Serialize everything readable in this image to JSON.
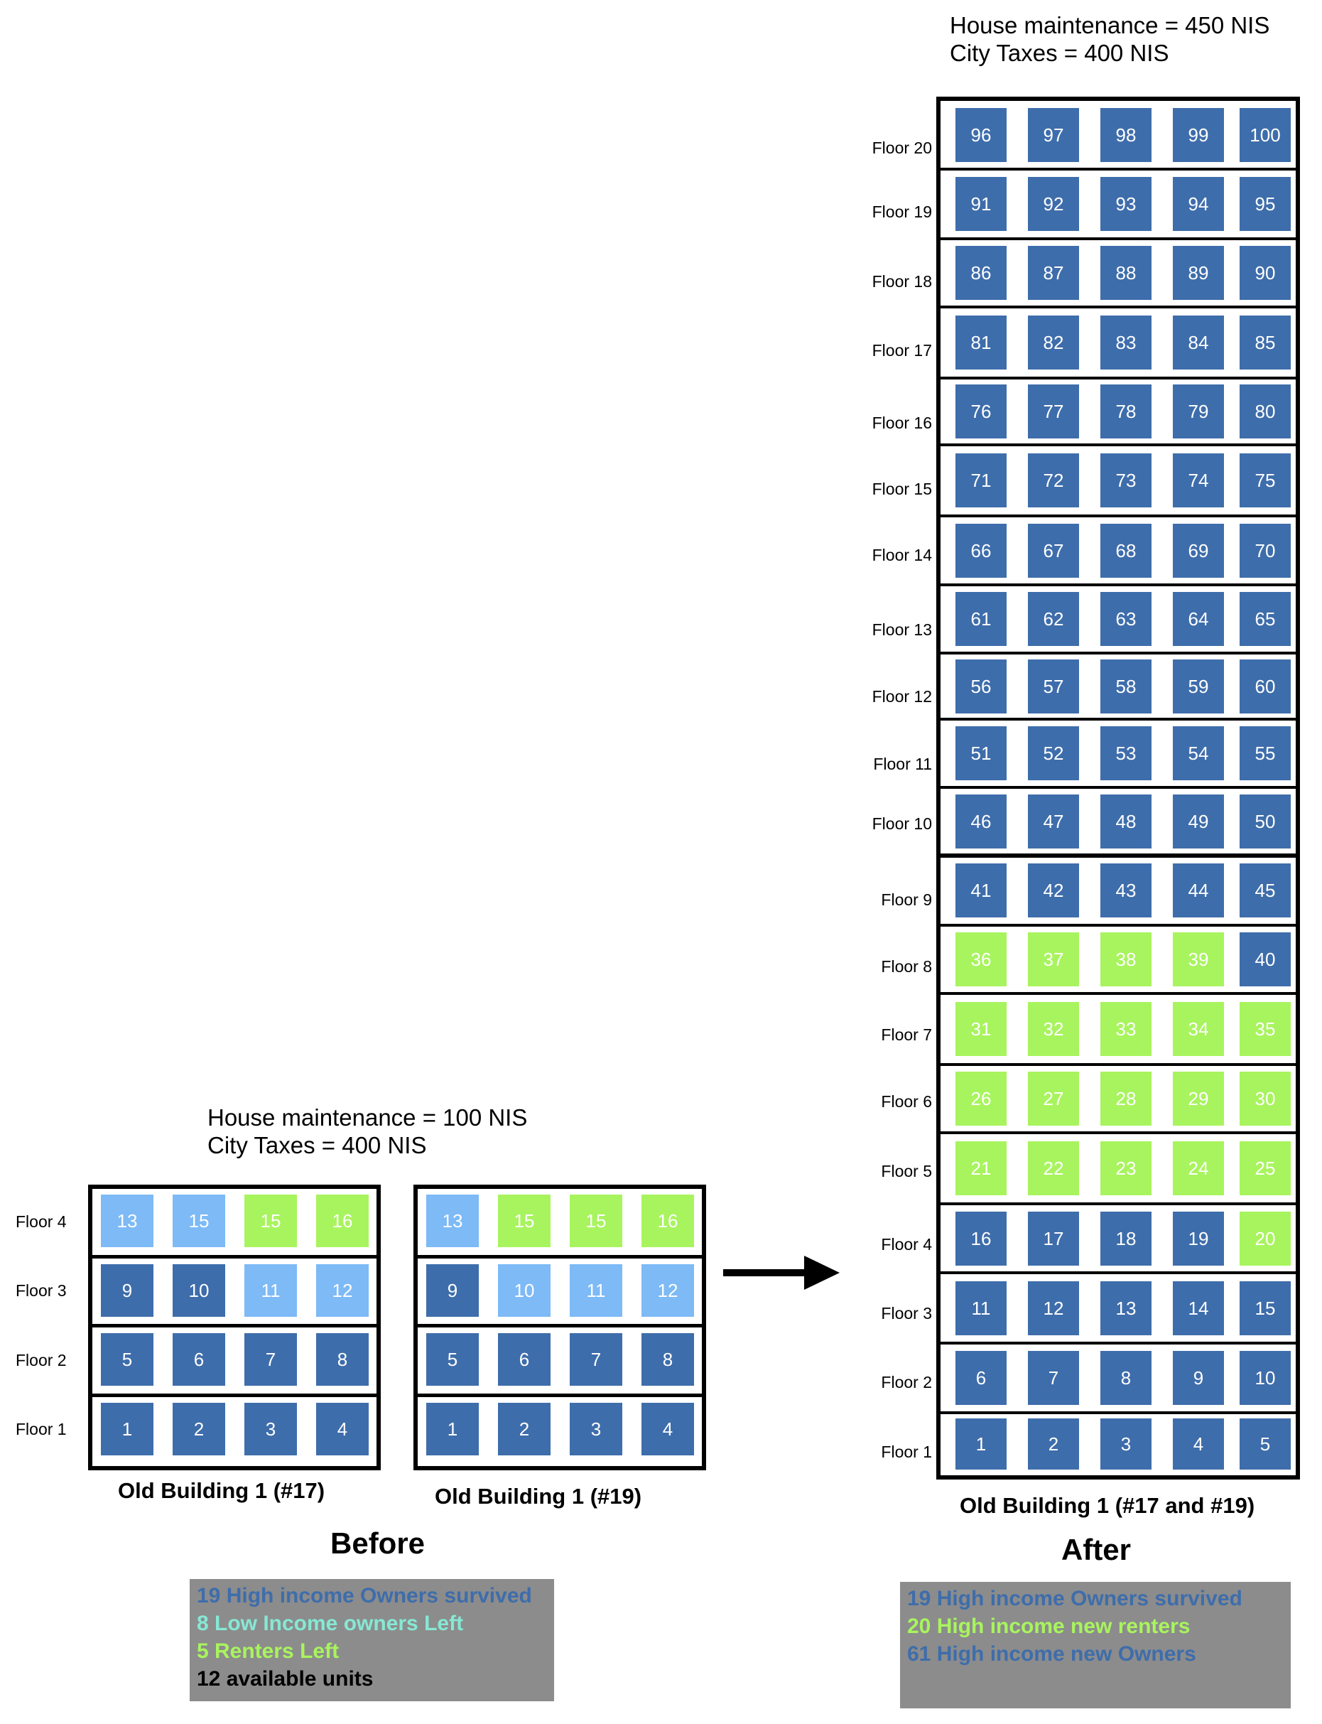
{
  "colors": {
    "high_income_owner": "#3e6dab",
    "low_income_owner": "#7dbaf6",
    "renter": "#a8f45e",
    "legend_bg": "#8c8c8c",
    "legend_low_income_text": "#86e8d4"
  },
  "before": {
    "costs": {
      "maintenance": "House maintenance = 100 NIS",
      "taxes": "City Taxes = 400 NIS"
    },
    "floor_labels": [
      "Floor 4",
      "Floor 3",
      "Floor 2",
      "Floor 1"
    ],
    "buildings": [
      {
        "caption": "Old Building 1 (#17)",
        "floors": [
          [
            {
              "n": "13",
              "c": "light"
            },
            {
              "n": "15",
              "c": "light"
            },
            {
              "n": "15",
              "c": "green"
            },
            {
              "n": "16",
              "c": "green"
            }
          ],
          [
            {
              "n": "9",
              "c": "dark"
            },
            {
              "n": "10",
              "c": "dark"
            },
            {
              "n": "11",
              "c": "light"
            },
            {
              "n": "12",
              "c": "light"
            }
          ],
          [
            {
              "n": "5",
              "c": "dark"
            },
            {
              "n": "6",
              "c": "dark"
            },
            {
              "n": "7",
              "c": "dark"
            },
            {
              "n": "8",
              "c": "dark"
            }
          ],
          [
            {
              "n": "1",
              "c": "dark"
            },
            {
              "n": "2",
              "c": "dark"
            },
            {
              "n": "3",
              "c": "dark"
            },
            {
              "n": "4",
              "c": "dark"
            }
          ]
        ]
      },
      {
        "caption": "Old Building 1 (#19)",
        "floors": [
          [
            {
              "n": "13",
              "c": "light"
            },
            {
              "n": "15",
              "c": "green"
            },
            {
              "n": "15",
              "c": "green"
            },
            {
              "n": "16",
              "c": "green"
            }
          ],
          [
            {
              "n": "9",
              "c": "dark"
            },
            {
              "n": "10",
              "c": "light"
            },
            {
              "n": "11",
              "c": "light"
            },
            {
              "n": "12",
              "c": "light"
            }
          ],
          [
            {
              "n": "5",
              "c": "dark"
            },
            {
              "n": "6",
              "c": "dark"
            },
            {
              "n": "7",
              "c": "dark"
            },
            {
              "n": "8",
              "c": "dark"
            }
          ],
          [
            {
              "n": "1",
              "c": "dark"
            },
            {
              "n": "2",
              "c": "dark"
            },
            {
              "n": "3",
              "c": "dark"
            },
            {
              "n": "4",
              "c": "dark"
            }
          ]
        ]
      }
    ],
    "title": "Before",
    "legend": [
      {
        "text": "19 High income Owners survived",
        "color": "#3e6dab"
      },
      {
        "text": "8 Low Income owners Left",
        "color": "#86e8d4"
      },
      {
        "text": "5 Renters Left",
        "color": "#a8f45e"
      },
      {
        "text": "12 available units",
        "color": "#000000"
      }
    ]
  },
  "after": {
    "costs": {
      "maintenance": "House maintenance = 450 NIS",
      "taxes": "City Taxes = 400 NIS"
    },
    "caption": "Old Building 1 (#17 and #19)",
    "title": "After",
    "floors": [
      {
        "label": "Floor 20",
        "units": [
          {
            "n": "96",
            "c": "dark"
          },
          {
            "n": "97",
            "c": "dark"
          },
          {
            "n": "98",
            "c": "dark"
          },
          {
            "n": "99",
            "c": "dark"
          },
          {
            "n": "100",
            "c": "dark"
          }
        ]
      },
      {
        "label": "Floor 19",
        "units": [
          {
            "n": "91",
            "c": "dark"
          },
          {
            "n": "92",
            "c": "dark"
          },
          {
            "n": "93",
            "c": "dark"
          },
          {
            "n": "94",
            "c": "dark"
          },
          {
            "n": "95",
            "c": "dark"
          }
        ]
      },
      {
        "label": "Floor 18",
        "units": [
          {
            "n": "86",
            "c": "dark"
          },
          {
            "n": "87",
            "c": "dark"
          },
          {
            "n": "88",
            "c": "dark"
          },
          {
            "n": "89",
            "c": "dark"
          },
          {
            "n": "90",
            "c": "dark"
          }
        ]
      },
      {
        "label": "Floor 17",
        "units": [
          {
            "n": "81",
            "c": "dark"
          },
          {
            "n": "82",
            "c": "dark"
          },
          {
            "n": "83",
            "c": "dark"
          },
          {
            "n": "84",
            "c": "dark"
          },
          {
            "n": "85",
            "c": "dark"
          }
        ]
      },
      {
        "label": "Floor 16",
        "units": [
          {
            "n": "76",
            "c": "dark"
          },
          {
            "n": "77",
            "c": "dark"
          },
          {
            "n": "78",
            "c": "dark"
          },
          {
            "n": "79",
            "c": "dark"
          },
          {
            "n": "80",
            "c": "dark"
          }
        ]
      },
      {
        "label": "Floor 15",
        "units": [
          {
            "n": "71",
            "c": "dark"
          },
          {
            "n": "72",
            "c": "dark"
          },
          {
            "n": "73",
            "c": "dark"
          },
          {
            "n": "74",
            "c": "dark"
          },
          {
            "n": "75",
            "c": "dark"
          }
        ]
      },
      {
        "label": "Floor 14",
        "units": [
          {
            "n": "66",
            "c": "dark"
          },
          {
            "n": "67",
            "c": "dark"
          },
          {
            "n": "68",
            "c": "dark"
          },
          {
            "n": "69",
            "c": "dark"
          },
          {
            "n": "70",
            "c": "dark"
          }
        ]
      },
      {
        "label": "Floor 13",
        "units": [
          {
            "n": "61",
            "c": "dark"
          },
          {
            "n": "62",
            "c": "dark"
          },
          {
            "n": "63",
            "c": "dark"
          },
          {
            "n": "64",
            "c": "dark"
          },
          {
            "n": "65",
            "c": "dark"
          }
        ]
      },
      {
        "label": "Floor 12",
        "units": [
          {
            "n": "56",
            "c": "dark"
          },
          {
            "n": "57",
            "c": "dark"
          },
          {
            "n": "58",
            "c": "dark"
          },
          {
            "n": "59",
            "c": "dark"
          },
          {
            "n": "60",
            "c": "dark"
          }
        ]
      },
      {
        "label": "Floor 11",
        "units": [
          {
            "n": "51",
            "c": "dark"
          },
          {
            "n": "52",
            "c": "dark"
          },
          {
            "n": "53",
            "c": "dark"
          },
          {
            "n": "54",
            "c": "dark"
          },
          {
            "n": "55",
            "c": "dark"
          }
        ]
      },
      {
        "label": "Floor 10",
        "units": [
          {
            "n": "46",
            "c": "dark"
          },
          {
            "n": "47",
            "c": "dark"
          },
          {
            "n": "48",
            "c": "dark"
          },
          {
            "n": "49",
            "c": "dark"
          },
          {
            "n": "50",
            "c": "dark"
          }
        ]
      },
      {
        "label": "Floor 9",
        "units": [
          {
            "n": "41",
            "c": "dark"
          },
          {
            "n": "42",
            "c": "dark"
          },
          {
            "n": "43",
            "c": "dark"
          },
          {
            "n": "44",
            "c": "dark"
          },
          {
            "n": "45",
            "c": "dark"
          }
        ]
      },
      {
        "label": "Floor 8",
        "units": [
          {
            "n": "36",
            "c": "green"
          },
          {
            "n": "37",
            "c": "green"
          },
          {
            "n": "38",
            "c": "green"
          },
          {
            "n": "39",
            "c": "green"
          },
          {
            "n": "40",
            "c": "dark"
          }
        ]
      },
      {
        "label": "Floor 7",
        "units": [
          {
            "n": "31",
            "c": "green"
          },
          {
            "n": "32",
            "c": "green"
          },
          {
            "n": "33",
            "c": "green"
          },
          {
            "n": "34",
            "c": "green"
          },
          {
            "n": "35",
            "c": "green"
          }
        ]
      },
      {
        "label": "Floor 6",
        "units": [
          {
            "n": "26",
            "c": "green"
          },
          {
            "n": "27",
            "c": "green"
          },
          {
            "n": "28",
            "c": "green"
          },
          {
            "n": "29",
            "c": "green"
          },
          {
            "n": "30",
            "c": "green"
          }
        ]
      },
      {
        "label": "Floor 5",
        "units": [
          {
            "n": "21",
            "c": "green"
          },
          {
            "n": "22",
            "c": "green"
          },
          {
            "n": "23",
            "c": "green"
          },
          {
            "n": "24",
            "c": "green"
          },
          {
            "n": "25",
            "c": "green"
          }
        ]
      },
      {
        "label": "Floor 4",
        "units": [
          {
            "n": "16",
            "c": "dark"
          },
          {
            "n": "17",
            "c": "dark"
          },
          {
            "n": "18",
            "c": "dark"
          },
          {
            "n": "19",
            "c": "dark"
          },
          {
            "n": "20",
            "c": "green"
          }
        ]
      },
      {
        "label": "Floor 3",
        "units": [
          {
            "n": "11",
            "c": "dark"
          },
          {
            "n": "12",
            "c": "dark"
          },
          {
            "n": "13",
            "c": "dark"
          },
          {
            "n": "14",
            "c": "dark"
          },
          {
            "n": "15",
            "c": "dark"
          }
        ]
      },
      {
        "label": "Floor 2",
        "units": [
          {
            "n": "6",
            "c": "dark"
          },
          {
            "n": "7",
            "c": "dark"
          },
          {
            "n": "8",
            "c": "dark"
          },
          {
            "n": "9",
            "c": "dark"
          },
          {
            "n": "10",
            "c": "dark"
          }
        ]
      },
      {
        "label": "Floor 1",
        "units": [
          {
            "n": "1",
            "c": "dark"
          },
          {
            "n": "2",
            "c": "dark"
          },
          {
            "n": "3",
            "c": "dark"
          },
          {
            "n": "4",
            "c": "dark"
          },
          {
            "n": "5",
            "c": "dark"
          }
        ]
      }
    ],
    "legend": [
      {
        "text": "19 High income Owners survived",
        "color": "#3e6dab"
      },
      {
        "text": "20 High income new renters",
        "color": "#a8f45e"
      },
      {
        "text": "61 High income new Owners",
        "color": "#3e6dab"
      }
    ]
  }
}
